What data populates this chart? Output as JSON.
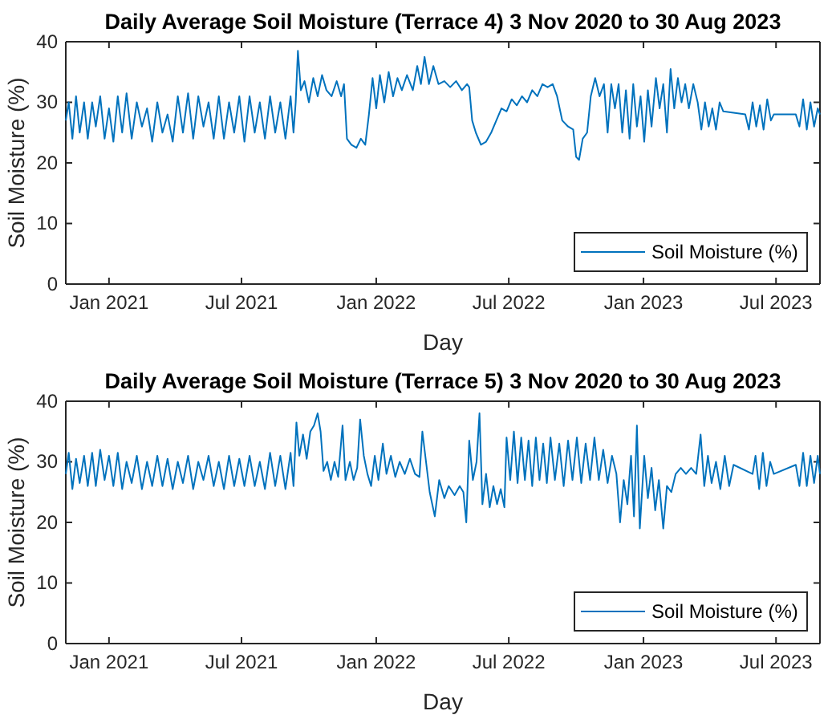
{
  "chart_data": [
    {
      "type": "line",
      "title": "Daily Average Soil Moisture (Terrace 4) 3 Nov 2020 to 30 Aug 2023",
      "xlabel": "Day",
      "ylabel": "Soil Moisture (%)",
      "xlim": [
        "2020-11-03",
        "2023-08-30"
      ],
      "xticks": [
        {
          "value": "2021-01-01",
          "label": "Jan 2021"
        },
        {
          "value": "2021-07-01",
          "label": "Jul 2021"
        },
        {
          "value": "2022-01-01",
          "label": "Jan 2022"
        },
        {
          "value": "2022-07-01",
          "label": "Jul 2022"
        },
        {
          "value": "2023-01-01",
          "label": "Jan 2023"
        },
        {
          "value": "2023-07-01",
          "label": "Jul 2023"
        }
      ],
      "ylim": [
        0,
        40
      ],
      "yticks": [
        0,
        10,
        20,
        30,
        40
      ],
      "legend": "bottom right",
      "series": [
        {
          "name": "Soil Moisture (%)",
          "color": "#0072bd",
          "x": [
            "2020-11-03",
            "2020-11-07",
            "2020-11-12",
            "2020-11-17",
            "2020-11-22",
            "2020-11-28",
            "2020-12-03",
            "2020-12-09",
            "2020-12-14",
            "2020-12-20",
            "2020-12-26",
            "2021-01-01",
            "2021-01-07",
            "2021-01-13",
            "2021-01-19",
            "2021-01-25",
            "2021-02-01",
            "2021-02-08",
            "2021-02-15",
            "2021-02-22",
            "2021-03-01",
            "2021-03-08",
            "2021-03-15",
            "2021-03-22",
            "2021-03-29",
            "2021-04-05",
            "2021-04-12",
            "2021-04-19",
            "2021-04-26",
            "2021-05-03",
            "2021-05-10",
            "2021-05-17",
            "2021-05-24",
            "2021-05-31",
            "2021-06-07",
            "2021-06-14",
            "2021-06-21",
            "2021-06-28",
            "2021-07-05",
            "2021-07-12",
            "2021-07-19",
            "2021-07-26",
            "2021-08-02",
            "2021-08-09",
            "2021-08-16",
            "2021-08-23",
            "2021-08-30",
            "2021-09-06",
            "2021-09-10",
            "2021-09-13",
            "2021-09-16",
            "2021-09-20",
            "2021-09-25",
            "2021-10-01",
            "2021-10-07",
            "2021-10-13",
            "2021-10-19",
            "2021-10-25",
            "2021-11-01",
            "2021-11-08",
            "2021-11-14",
            "2021-11-18",
            "2021-11-22",
            "2021-11-28",
            "2021-12-05",
            "2021-12-11",
            "2021-12-17",
            "2021-12-22",
            "2021-12-27",
            "2022-01-01",
            "2022-01-06",
            "2022-01-12",
            "2022-01-18",
            "2022-01-24",
            "2022-01-30",
            "2022-02-05",
            "2022-02-12",
            "2022-02-20",
            "2022-02-26",
            "2022-03-03",
            "2022-03-08",
            "2022-03-14",
            "2022-03-20",
            "2022-03-27",
            "2022-04-04",
            "2022-04-12",
            "2022-04-20",
            "2022-04-28",
            "2022-05-05",
            "2022-05-08",
            "2022-05-12",
            "2022-05-17",
            "2022-05-24",
            "2022-05-31",
            "2022-06-07",
            "2022-06-14",
            "2022-06-21",
            "2022-06-28",
            "2022-07-05",
            "2022-07-12",
            "2022-07-19",
            "2022-07-26",
            "2022-08-02",
            "2022-08-09",
            "2022-08-16",
            "2022-08-23",
            "2022-08-30",
            "2022-09-05",
            "2022-09-12",
            "2022-09-20",
            "2022-09-27",
            "2022-10-01",
            "2022-10-05",
            "2022-10-10",
            "2022-10-16",
            "2022-10-21",
            "2022-10-27",
            "2022-11-02",
            "2022-11-08",
            "2022-11-13",
            "2022-11-18",
            "2022-11-23",
            "2022-11-28",
            "2022-12-03",
            "2022-12-08",
            "2022-12-13",
            "2022-12-18",
            "2022-12-23",
            "2022-12-28",
            "2023-01-02",
            "2023-01-07",
            "2023-01-12",
            "2023-01-18",
            "2023-01-23",
            "2023-01-28",
            "2023-02-02",
            "2023-02-07",
            "2023-02-12",
            "2023-02-17",
            "2023-02-22",
            "2023-02-27",
            "2023-03-04",
            "2023-03-10",
            "2023-03-16",
            "2023-03-21",
            "2023-03-26",
            "2023-03-31",
            "2023-04-05",
            "2023-04-10",
            "2023-04-15",
            "2023-04-20",
            "2023-05-20",
            "2023-05-25",
            "2023-05-30",
            "2023-06-04",
            "2023-06-09",
            "2023-06-14",
            "2023-06-19",
            "2023-06-24",
            "2023-06-28",
            "2023-07-28",
            "2023-08-02",
            "2023-08-07",
            "2023-08-12",
            "2023-08-17",
            "2023-08-22",
            "2023-08-27",
            "2023-08-30"
          ],
          "values": [
            27,
            30,
            24,
            31,
            25,
            30,
            24,
            30,
            26,
            31,
            24,
            29,
            23.5,
            31,
            25,
            31.5,
            24,
            30,
            26,
            29,
            23.5,
            30,
            25,
            28,
            23.5,
            31,
            25,
            31.5,
            24,
            31,
            26,
            30,
            24,
            31,
            24,
            30,
            25,
            31,
            23.5,
            31,
            25,
            30,
            24,
            31,
            25,
            30,
            24,
            31,
            25,
            30,
            38.5,
            32,
            33.5,
            30,
            34,
            31,
            34.5,
            32,
            31,
            33.5,
            31,
            33,
            24,
            23,
            22.5,
            24,
            23,
            28,
            34,
            29,
            34.5,
            30,
            35,
            31,
            34,
            32,
            34.5,
            32,
            36,
            33,
            37.5,
            33,
            36,
            33,
            33.5,
            32.5,
            33.5,
            32,
            33,
            32.5,
            27,
            25,
            23,
            23.5,
            25,
            27,
            29,
            28.5,
            30.5,
            29.5,
            31,
            30,
            32,
            31,
            33,
            32.5,
            33,
            31,
            27,
            26,
            25.5,
            21,
            20.5,
            24,
            25,
            31,
            34,
            31,
            33,
            25,
            33,
            29,
            33,
            25,
            32,
            24,
            33,
            26,
            31,
            23.5,
            32,
            26,
            34,
            29,
            33,
            25,
            35.5,
            29,
            34,
            30,
            33,
            29,
            33,
            30,
            25.5,
            30,
            26,
            29,
            25.5,
            30,
            28.5,
            28,
            25.5,
            30,
            26,
            29.5,
            25.5,
            30.5,
            27,
            28,
            28,
            26,
            30.5,
            25.5,
            30,
            26,
            29,
            28
          ]
        }
      ]
    },
    {
      "type": "line",
      "title": "Daily Average Soil Moisture (Terrace 5) 3 Nov 2020 to 30 Aug 2023",
      "xlabel": "Day",
      "ylabel": "Soil Moisture (%)",
      "xlim": [
        "2020-11-03",
        "2023-08-30"
      ],
      "xticks": [
        {
          "value": "2021-01-01",
          "label": "Jan 2021"
        },
        {
          "value": "2021-07-01",
          "label": "Jul 2021"
        },
        {
          "value": "2022-01-01",
          "label": "Jan 2022"
        },
        {
          "value": "2022-07-01",
          "label": "Jul 2022"
        },
        {
          "value": "2023-01-01",
          "label": "Jan 2023"
        },
        {
          "value": "2023-07-01",
          "label": "Jul 2023"
        }
      ],
      "ylim": [
        0,
        40
      ],
      "yticks": [
        0,
        10,
        20,
        30,
        40
      ],
      "legend": "bottom right",
      "series": [
        {
          "name": "Soil Moisture (%)",
          "color": "#0072bd",
          "x": [
            "2020-11-03",
            "2020-11-07",
            "2020-11-12",
            "2020-11-17",
            "2020-11-22",
            "2020-11-28",
            "2020-12-03",
            "2020-12-09",
            "2020-12-14",
            "2020-12-20",
            "2020-12-26",
            "2021-01-01",
            "2021-01-07",
            "2021-01-13",
            "2021-01-19",
            "2021-01-25",
            "2021-02-01",
            "2021-02-08",
            "2021-02-15",
            "2021-02-22",
            "2021-03-01",
            "2021-03-08",
            "2021-03-15",
            "2021-03-22",
            "2021-03-29",
            "2021-04-05",
            "2021-04-12",
            "2021-04-19",
            "2021-04-26",
            "2021-05-03",
            "2021-05-10",
            "2021-05-17",
            "2021-05-24",
            "2021-05-31",
            "2021-06-07",
            "2021-06-14",
            "2021-06-21",
            "2021-06-28",
            "2021-07-05",
            "2021-07-12",
            "2021-07-19",
            "2021-07-26",
            "2021-08-02",
            "2021-08-09",
            "2021-08-16",
            "2021-08-23",
            "2021-08-30",
            "2021-09-06",
            "2021-09-10",
            "2021-09-14",
            "2021-09-18",
            "2021-09-23",
            "2021-09-28",
            "2021-10-03",
            "2021-10-08",
            "2021-10-13",
            "2021-10-17",
            "2021-10-21",
            "2021-10-26",
            "2021-10-31",
            "2021-11-05",
            "2021-11-10",
            "2021-11-16",
            "2021-11-20",
            "2021-11-26",
            "2021-12-01",
            "2021-12-06",
            "2021-12-10",
            "2021-12-15",
            "2021-12-20",
            "2021-12-25",
            "2021-12-30",
            "2022-01-04",
            "2022-01-10",
            "2022-01-15",
            "2022-01-21",
            "2022-01-27",
            "2022-02-02",
            "2022-02-09",
            "2022-02-16",
            "2022-02-23",
            "2022-03-01",
            "2022-03-05",
            "2022-03-10",
            "2022-03-15",
            "2022-03-22",
            "2022-03-28",
            "2022-04-04",
            "2022-04-10",
            "2022-04-18",
            "2022-04-25",
            "2022-04-30",
            "2022-05-04",
            "2022-05-08",
            "2022-05-13",
            "2022-05-18",
            "2022-05-22",
            "2022-05-26",
            "2022-05-31",
            "2022-06-05",
            "2022-06-10",
            "2022-06-15",
            "2022-06-20",
            "2022-06-25",
            "2022-06-28",
            "2022-07-03",
            "2022-07-08",
            "2022-07-13",
            "2022-07-18",
            "2022-07-23",
            "2022-07-28",
            "2022-08-02",
            "2022-08-07",
            "2022-08-12",
            "2022-08-17",
            "2022-08-22",
            "2022-08-27",
            "2022-09-02",
            "2022-09-08",
            "2022-09-14",
            "2022-09-20",
            "2022-09-26",
            "2022-10-02",
            "2022-10-08",
            "2022-10-14",
            "2022-10-20",
            "2022-10-26",
            "2022-11-01",
            "2022-11-07",
            "2022-11-13",
            "2022-11-19",
            "2022-11-25",
            "2022-11-30",
            "2022-12-05",
            "2022-12-10",
            "2022-12-15",
            "2022-12-19",
            "2022-12-23",
            "2022-12-27",
            "2023-01-02",
            "2023-01-07",
            "2023-01-12",
            "2023-01-17",
            "2023-01-22",
            "2023-01-28",
            "2023-02-02",
            "2023-02-08",
            "2023-02-14",
            "2023-02-21",
            "2023-02-28",
            "2023-03-07",
            "2023-03-14",
            "2023-03-20",
            "2023-03-25",
            "2023-03-30",
            "2023-04-04",
            "2023-04-10",
            "2023-04-16",
            "2023-04-22",
            "2023-04-28",
            "2023-05-04",
            "2023-05-30",
            "2023-06-03",
            "2023-06-08",
            "2023-06-13",
            "2023-06-18",
            "2023-06-23",
            "2023-06-28",
            "2023-07-28",
            "2023-08-02",
            "2023-08-07",
            "2023-08-12",
            "2023-08-17",
            "2023-08-22",
            "2023-08-27",
            "2023-08-30"
          ],
          "values": [
            28,
            31.5,
            25.5,
            30.5,
            26.5,
            31,
            26,
            31.5,
            26,
            32,
            27,
            31,
            26,
            31.5,
            25.5,
            30,
            26.5,
            31,
            25.5,
            30,
            26,
            31,
            26,
            30.5,
            25.5,
            30,
            26.5,
            31,
            25.5,
            30,
            27,
            31,
            26,
            30,
            25.5,
            31,
            26,
            30.5,
            26,
            31,
            26,
            30,
            25.5,
            31.5,
            26,
            31,
            25.5,
            31.5,
            26,
            36.5,
            31,
            34.5,
            30.5,
            35,
            36,
            38,
            35,
            28.5,
            30,
            27,
            30,
            27.5,
            36,
            27,
            30,
            27,
            29,
            37,
            31,
            28,
            26,
            31,
            27,
            33,
            28,
            31,
            27.5,
            30,
            28,
            30.5,
            28,
            27.5,
            35,
            30,
            25,
            21,
            27,
            24,
            26,
            24.5,
            26,
            25,
            20,
            33.5,
            27,
            30,
            38,
            23,
            28,
            22.5,
            26,
            23,
            25.5,
            22.5,
            34,
            27,
            35,
            26.5,
            34,
            27,
            33.5,
            26,
            34,
            27,
            33,
            26.5,
            34,
            27,
            33,
            26,
            33.5,
            27,
            34,
            26.5,
            33,
            27,
            34,
            27,
            32,
            26.5,
            31,
            28,
            20,
            27,
            23,
            31,
            21,
            36,
            19,
            31,
            24,
            29,
            22,
            27,
            19,
            26,
            25,
            28,
            29,
            28,
            29,
            28,
            34.5,
            26,
            31,
            26.5,
            30,
            25.5,
            31,
            26,
            29.5,
            28,
            31,
            25.5,
            31.5,
            26,
            30,
            28,
            29.5,
            26,
            31.5,
            26,
            31,
            26.5,
            31,
            28
          ]
        }
      ]
    }
  ]
}
